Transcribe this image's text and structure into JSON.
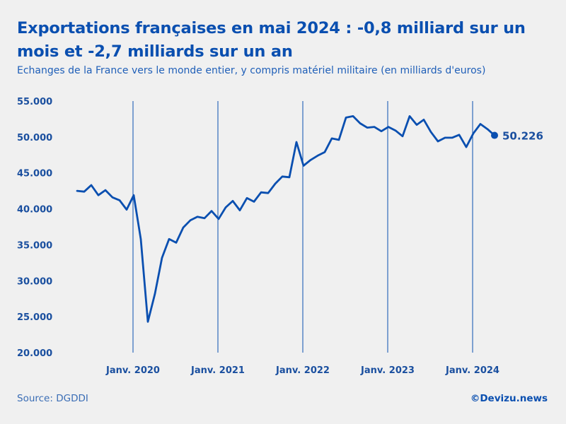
{
  "title": "Exportations françaises en mai 2024 : -0,8 milliard sur un mois et -2,7 milliards sur un an",
  "subtitle": "Echanges de la France vers le monde entier, y compris matériel militaire (en milliards d'euros)",
  "source": "Source: DGDDI",
  "brand": "©Devizu.news",
  "colors": {
    "line": "#0a4fb0",
    "text": "#1a4f9f",
    "background": "#f0f0f0"
  },
  "chart_data": {
    "type": "line",
    "title": "Exportations françaises en mai 2024 : -0,8 milliard sur un mois et -2,7 milliards sur un an",
    "subtitle": "Echanges de la France vers le monde entier, y compris matériel militaire (en milliards d'euros)",
    "xlabel": "",
    "ylabel": "",
    "ylim": [
      20,
      55
    ],
    "yticks": [
      20,
      25,
      30,
      35,
      40,
      45,
      50,
      55
    ],
    "ytick_labels": [
      "20.000",
      "25.000",
      "30.000",
      "35.000",
      "40.000",
      "45.000",
      "50.000",
      "55.000"
    ],
    "xticks": [
      {
        "label": "Janv. 2020",
        "index": 8
      },
      {
        "label": "Janv. 2021",
        "index": 20
      },
      {
        "label": "Janv. 2022",
        "index": 32
      },
      {
        "label": "Janv. 2023",
        "index": 44
      },
      {
        "label": "Janv. 2024",
        "index": 56
      }
    ],
    "grid": "vertical lines at January of each year",
    "series": [
      {
        "name": "Exportations",
        "start": "2019-05",
        "values": [
          42.5,
          42.4,
          43.3,
          41.9,
          42.6,
          41.6,
          41.2,
          39.9,
          41.9,
          35.8,
          24.3,
          28.2,
          33.2,
          35.8,
          35.3,
          37.4,
          38.4,
          38.9,
          38.7,
          39.7,
          38.6,
          40.2,
          41.1,
          39.8,
          41.5,
          41.0,
          42.3,
          42.2,
          43.5,
          44.5,
          44.4,
          49.3,
          46.0,
          46.8,
          47.4,
          47.9,
          49.8,
          49.6,
          52.7,
          52.9,
          51.9,
          51.3,
          51.4,
          50.8,
          51.4,
          50.9,
          50.1,
          52.9,
          51.7,
          52.4,
          50.7,
          49.4,
          49.9,
          49.9,
          50.3,
          48.6,
          50.5,
          51.8,
          51.1,
          50.226
        ]
      }
    ],
    "end_label": "50.226",
    "end_value": 50.226
  }
}
